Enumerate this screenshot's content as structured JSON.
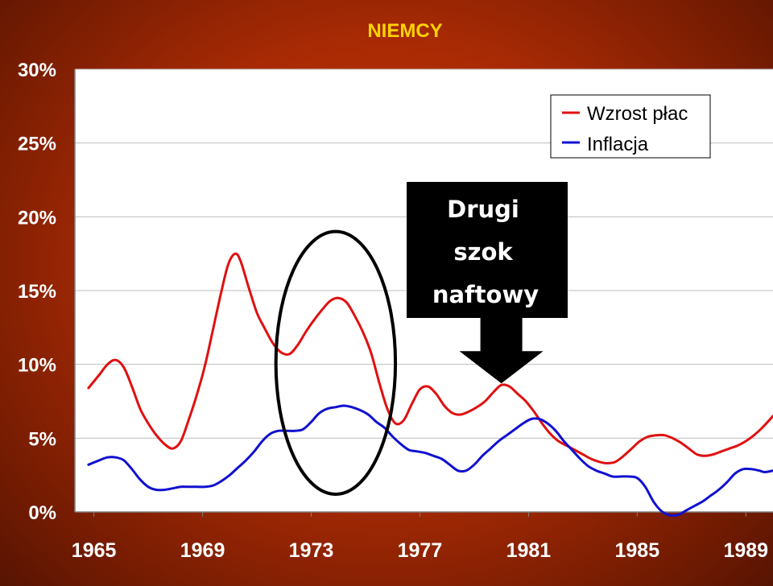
{
  "chart_data": {
    "type": "line",
    "title": "NIEMCY",
    "xlabel": "",
    "ylabel": "",
    "x_range": [
      1964.3,
      1990.0
    ],
    "ylim": [
      0,
      30
    ],
    "yticks": [
      "0%",
      "5%",
      "10%",
      "15%",
      "20%",
      "25%",
      "30%"
    ],
    "xticks": [
      "1965",
      "1969",
      "1973",
      "1977",
      "1981",
      "1985",
      "1989"
    ],
    "grid": true,
    "legend_position": "top-right",
    "series": [
      {
        "name": "Wzrost płac",
        "color": "#e01010",
        "points": [
          [
            1964.8,
            8.4
          ],
          [
            1965.2,
            9.3
          ],
          [
            1965.5,
            10.0
          ],
          [
            1965.8,
            10.3
          ],
          [
            1966.1,
            9.8
          ],
          [
            1966.4,
            8.5
          ],
          [
            1966.7,
            7.0
          ],
          [
            1967.0,
            6.0
          ],
          [
            1967.3,
            5.2
          ],
          [
            1967.6,
            4.6
          ],
          [
            1967.9,
            4.3
          ],
          [
            1968.2,
            4.8
          ],
          [
            1968.5,
            6.3
          ],
          [
            1968.8,
            8.0
          ],
          [
            1969.1,
            10.0
          ],
          [
            1969.4,
            12.5
          ],
          [
            1969.7,
            15.0
          ],
          [
            1969.95,
            16.8
          ],
          [
            1970.2,
            17.5
          ],
          [
            1970.4,
            17.0
          ],
          [
            1970.7,
            15.2
          ],
          [
            1971.0,
            13.5
          ],
          [
            1971.3,
            12.4
          ],
          [
            1971.6,
            11.4
          ],
          [
            1971.9,
            10.8
          ],
          [
            1972.2,
            10.7
          ],
          [
            1972.5,
            11.3
          ],
          [
            1972.8,
            12.2
          ],
          [
            1973.1,
            13.0
          ],
          [
            1973.4,
            13.7
          ],
          [
            1973.7,
            14.3
          ],
          [
            1974.0,
            14.5
          ],
          [
            1974.3,
            14.2
          ],
          [
            1974.6,
            13.3
          ],
          [
            1974.9,
            12.2
          ],
          [
            1975.2,
            10.8
          ],
          [
            1975.5,
            8.8
          ],
          [
            1975.8,
            7.0
          ],
          [
            1976.1,
            6.0
          ],
          [
            1976.4,
            6.2
          ],
          [
            1976.7,
            7.3
          ],
          [
            1977.0,
            8.3
          ],
          [
            1977.3,
            8.5
          ],
          [
            1977.6,
            8.0
          ],
          [
            1977.9,
            7.2
          ],
          [
            1978.2,
            6.7
          ],
          [
            1978.5,
            6.6
          ],
          [
            1978.8,
            6.8
          ],
          [
            1979.1,
            7.1
          ],
          [
            1979.4,
            7.5
          ],
          [
            1979.7,
            8.1
          ],
          [
            1980.0,
            8.6
          ],
          [
            1980.3,
            8.5
          ],
          [
            1980.6,
            8.0
          ],
          [
            1980.9,
            7.5
          ],
          [
            1981.2,
            6.8
          ],
          [
            1981.5,
            6.0
          ],
          [
            1981.8,
            5.3
          ],
          [
            1982.1,
            4.8
          ],
          [
            1982.4,
            4.5
          ],
          [
            1982.7,
            4.2
          ],
          [
            1983.0,
            3.9
          ],
          [
            1983.3,
            3.6
          ],
          [
            1983.6,
            3.4
          ],
          [
            1983.9,
            3.3
          ],
          [
            1984.2,
            3.4
          ],
          [
            1984.5,
            3.8
          ],
          [
            1984.8,
            4.3
          ],
          [
            1985.1,
            4.8
          ],
          [
            1985.4,
            5.1
          ],
          [
            1985.7,
            5.2
          ],
          [
            1986.0,
            5.2
          ],
          [
            1986.3,
            5.0
          ],
          [
            1986.6,
            4.7
          ],
          [
            1986.9,
            4.3
          ],
          [
            1987.2,
            3.9
          ],
          [
            1987.5,
            3.8
          ],
          [
            1987.8,
            3.9
          ],
          [
            1988.1,
            4.1
          ],
          [
            1988.4,
            4.3
          ],
          [
            1988.7,
            4.5
          ],
          [
            1989.0,
            4.8
          ],
          [
            1989.3,
            5.2
          ],
          [
            1989.6,
            5.7
          ],
          [
            1990.0,
            6.5
          ]
        ]
      },
      {
        "name": "Inflacja",
        "color": "#1010d0",
        "points": [
          [
            1964.8,
            3.2
          ],
          [
            1965.2,
            3.5
          ],
          [
            1965.5,
            3.7
          ],
          [
            1965.8,
            3.7
          ],
          [
            1966.1,
            3.5
          ],
          [
            1966.4,
            2.9
          ],
          [
            1966.7,
            2.2
          ],
          [
            1967.0,
            1.7
          ],
          [
            1967.3,
            1.5
          ],
          [
            1967.6,
            1.5
          ],
          [
            1967.9,
            1.6
          ],
          [
            1968.2,
            1.7
          ],
          [
            1968.5,
            1.7
          ],
          [
            1968.8,
            1.7
          ],
          [
            1969.1,
            1.7
          ],
          [
            1969.4,
            1.8
          ],
          [
            1969.7,
            2.1
          ],
          [
            1970.0,
            2.5
          ],
          [
            1970.3,
            3.0
          ],
          [
            1970.6,
            3.5
          ],
          [
            1970.9,
            4.1
          ],
          [
            1971.2,
            4.8
          ],
          [
            1971.5,
            5.3
          ],
          [
            1971.8,
            5.5
          ],
          [
            1972.1,
            5.5
          ],
          [
            1972.4,
            5.5
          ],
          [
            1972.7,
            5.6
          ],
          [
            1973.0,
            6.1
          ],
          [
            1973.3,
            6.7
          ],
          [
            1973.6,
            7.0
          ],
          [
            1973.9,
            7.1
          ],
          [
            1974.2,
            7.2
          ],
          [
            1974.5,
            7.1
          ],
          [
            1974.8,
            6.9
          ],
          [
            1975.1,
            6.6
          ],
          [
            1975.4,
            6.1
          ],
          [
            1975.7,
            5.7
          ],
          [
            1976.0,
            5.1
          ],
          [
            1976.3,
            4.6
          ],
          [
            1976.6,
            4.2
          ],
          [
            1976.9,
            4.1
          ],
          [
            1977.2,
            4.0
          ],
          [
            1977.5,
            3.8
          ],
          [
            1977.8,
            3.6
          ],
          [
            1978.1,
            3.2
          ],
          [
            1978.4,
            2.8
          ],
          [
            1978.7,
            2.8
          ],
          [
            1979.0,
            3.2
          ],
          [
            1979.3,
            3.8
          ],
          [
            1979.6,
            4.3
          ],
          [
            1979.9,
            4.8
          ],
          [
            1980.2,
            5.2
          ],
          [
            1980.5,
            5.6
          ],
          [
            1980.8,
            6.0
          ],
          [
            1981.1,
            6.3
          ],
          [
            1981.4,
            6.3
          ],
          [
            1981.7,
            6.0
          ],
          [
            1982.0,
            5.5
          ],
          [
            1982.3,
            4.8
          ],
          [
            1982.6,
            4.2
          ],
          [
            1982.9,
            3.6
          ],
          [
            1983.2,
            3.1
          ],
          [
            1983.5,
            2.8
          ],
          [
            1983.8,
            2.6
          ],
          [
            1984.1,
            2.4
          ],
          [
            1984.4,
            2.4
          ],
          [
            1984.7,
            2.4
          ],
          [
            1985.0,
            2.3
          ],
          [
            1985.3,
            1.7
          ],
          [
            1985.6,
            0.7
          ],
          [
            1985.9,
            0.05
          ],
          [
            1986.2,
            -0.3
          ],
          [
            1986.5,
            -0.2
          ],
          [
            1986.8,
            0.1
          ],
          [
            1987.1,
            0.4
          ],
          [
            1987.4,
            0.7
          ],
          [
            1987.7,
            1.1
          ],
          [
            1988.0,
            1.5
          ],
          [
            1988.3,
            2.0
          ],
          [
            1988.6,
            2.6
          ],
          [
            1988.9,
            2.9
          ],
          [
            1989.2,
            2.9
          ],
          [
            1989.5,
            2.8
          ],
          [
            1989.7,
            2.7
          ],
          [
            1990.0,
            2.8
          ]
        ]
      }
    ],
    "annotations": {
      "callout_lines": [
        "Drugi",
        "szok",
        "naftowy"
      ],
      "arrow_target": [
        1980.0,
        8.6
      ],
      "ellipse_center": [
        1973.9,
        10.1
      ],
      "ellipse_radius": [
        2.2,
        8.9
      ]
    }
  }
}
